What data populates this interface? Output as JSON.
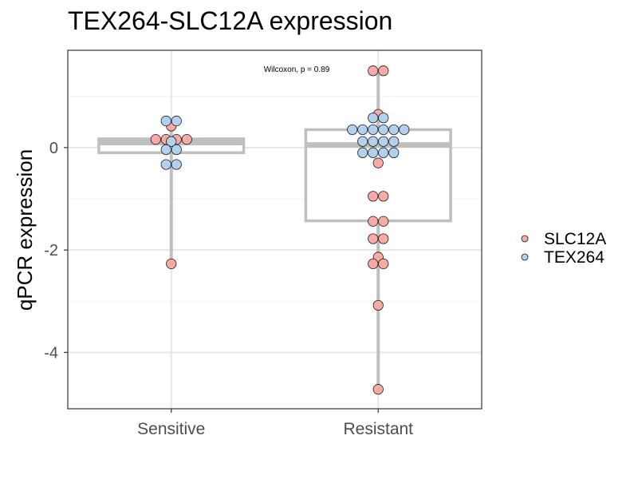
{
  "chart_data": {
    "type": "scatter",
    "title": "TEX264-SLC12A expression",
    "xlabel": "",
    "ylabel": "qPCR expression",
    "categories": [
      "Sensitive",
      "Resistant"
    ],
    "ylim": [
      -5.1,
      1.9
    ],
    "yticks": [
      -4,
      -2,
      0
    ],
    "ytick_labels": [
      "-4",
      "-2",
      "0"
    ],
    "grid": true,
    "legend_position": "right",
    "annotation": "Wilcoxon, p = 0.89",
    "boxplots": [
      {
        "category": "Sensitive",
        "q1": -0.1,
        "median": 0.1,
        "q3": 0.17,
        "whisker_low": -2.27,
        "whisker_high": 0.52
      },
      {
        "category": "Resistant",
        "q1": -1.43,
        "median": 0.05,
        "q3": 0.35,
        "whisker_low": -4.72,
        "whisker_high": 1.5
      }
    ],
    "series": [
      {
        "name": "SLC12A",
        "color": "#f8aaa6",
        "points": [
          {
            "category": "Sensitive",
            "dx": 0,
            "y": 0.42
          },
          {
            "category": "Sensitive",
            "dx": -1.5,
            "y": 0.16
          },
          {
            "category": "Sensitive",
            "dx": -0.5,
            "y": 0.16
          },
          {
            "category": "Sensitive",
            "dx": 0.5,
            "y": 0.16
          },
          {
            "category": "Sensitive",
            "dx": 1.5,
            "y": 0.16
          },
          {
            "category": "Sensitive",
            "dx": 0,
            "y": -2.27
          },
          {
            "category": "Resistant",
            "dx": -0.5,
            "y": 1.5
          },
          {
            "category": "Resistant",
            "dx": 0.5,
            "y": 1.5
          },
          {
            "category": "Resistant",
            "dx": 0,
            "y": 0.65
          },
          {
            "category": "Resistant",
            "dx": 0,
            "y": -0.3
          },
          {
            "category": "Resistant",
            "dx": -0.5,
            "y": -0.95
          },
          {
            "category": "Resistant",
            "dx": 0.5,
            "y": -0.95
          },
          {
            "category": "Resistant",
            "dx": -0.5,
            "y": -1.44
          },
          {
            "category": "Resistant",
            "dx": 0.5,
            "y": -1.44
          },
          {
            "category": "Resistant",
            "dx": -0.5,
            "y": -1.78
          },
          {
            "category": "Resistant",
            "dx": 0.5,
            "y": -1.78
          },
          {
            "category": "Resistant",
            "dx": 0,
            "y": -2.14
          },
          {
            "category": "Resistant",
            "dx": -0.5,
            "y": -2.27
          },
          {
            "category": "Resistant",
            "dx": 0.5,
            "y": -2.27
          },
          {
            "category": "Resistant",
            "dx": 0,
            "y": -3.08
          },
          {
            "category": "Resistant",
            "dx": 0,
            "y": -4.72
          }
        ]
      },
      {
        "name": "TEX264",
        "color": "#b3d1ec",
        "points": [
          {
            "category": "Sensitive",
            "dx": -0.5,
            "y": 0.52
          },
          {
            "category": "Sensitive",
            "dx": 0.5,
            "y": 0.52
          },
          {
            "category": "Sensitive",
            "dx": 0,
            "y": 0.12
          },
          {
            "category": "Sensitive",
            "dx": -0.5,
            "y": -0.04
          },
          {
            "category": "Sensitive",
            "dx": 0.5,
            "y": -0.04
          },
          {
            "category": "Sensitive",
            "dx": -0.5,
            "y": -0.33
          },
          {
            "category": "Sensitive",
            "dx": 0.5,
            "y": -0.33
          },
          {
            "category": "Resistant",
            "dx": -0.5,
            "y": 0.58
          },
          {
            "category": "Resistant",
            "dx": 0.5,
            "y": 0.58
          },
          {
            "category": "Resistant",
            "dx": -2.5,
            "y": 0.35
          },
          {
            "category": "Resistant",
            "dx": -1.5,
            "y": 0.35
          },
          {
            "category": "Resistant",
            "dx": -0.5,
            "y": 0.35
          },
          {
            "category": "Resistant",
            "dx": 0.5,
            "y": 0.35
          },
          {
            "category": "Resistant",
            "dx": 1.5,
            "y": 0.35
          },
          {
            "category": "Resistant",
            "dx": 2.5,
            "y": 0.35
          },
          {
            "category": "Resistant",
            "dx": -1.5,
            "y": 0.12
          },
          {
            "category": "Resistant",
            "dx": -0.5,
            "y": 0.12
          },
          {
            "category": "Resistant",
            "dx": 0.5,
            "y": 0.12
          },
          {
            "category": "Resistant",
            "dx": 1.5,
            "y": 0.12
          },
          {
            "category": "Resistant",
            "dx": -1.5,
            "y": -0.1
          },
          {
            "category": "Resistant",
            "dx": -0.5,
            "y": -0.1
          },
          {
            "category": "Resistant",
            "dx": 0.5,
            "y": -0.1
          },
          {
            "category": "Resistant",
            "dx": 1.5,
            "y": -0.1
          }
        ]
      }
    ]
  }
}
